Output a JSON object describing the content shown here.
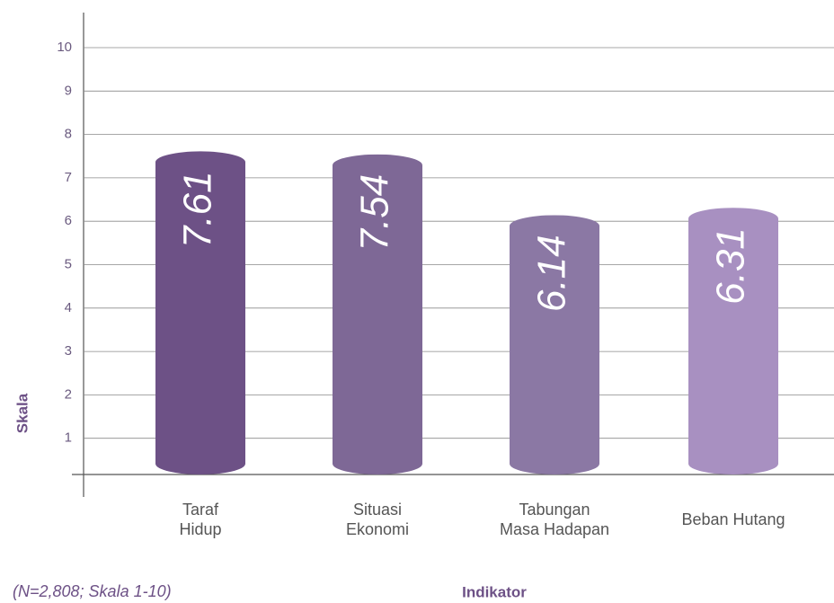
{
  "chart_data": {
    "type": "bar",
    "categories": [
      "Taraf\nHidup",
      "Situasi\nEkonomi",
      "Tabungan\nMasa Hadapan",
      "Beban Hutang"
    ],
    "values": [
      7.61,
      7.54,
      6.14,
      6.31
    ],
    "colors": [
      "#6d5186",
      "#7e6896",
      "#8b78a4",
      "#a890c1"
    ],
    "ylim": [
      0,
      10
    ],
    "yticks": [
      1,
      2,
      3,
      4,
      5,
      6,
      7,
      8,
      9,
      10
    ],
    "grid": true,
    "y_label": "Skala",
    "x_label": "Indikator",
    "note": "(N=2,808; Skala 1-10)"
  }
}
